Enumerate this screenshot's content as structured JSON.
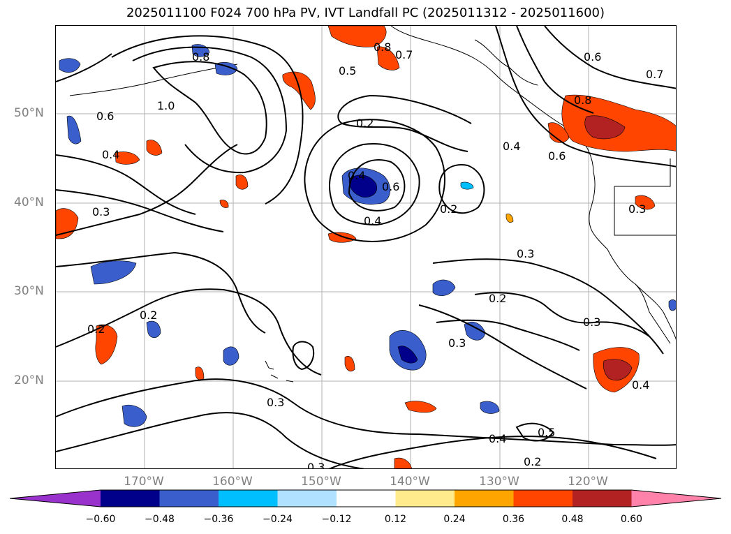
{
  "title": "2025011100 F024 700 hPa PV, IVT Landfall PC (2025011312 - 2025011600)",
  "lat_labels": [
    "50°N",
    "40°N",
    "30°N",
    "20°N"
  ],
  "lon_labels": [
    "170°W",
    "160°W",
    "150°W",
    "140°W",
    "130°W",
    "120°W"
  ],
  "colorbar": {
    "tick_labels": [
      "−0.60",
      "−0.48",
      "−0.36",
      "−0.24",
      "−0.12",
      "0.12",
      "0.24",
      "0.36",
      "0.48",
      "0.60"
    ],
    "colors": [
      "#9932cc",
      "#00008b",
      "#3a5fcd",
      "#00bfff",
      "#b0e2ff",
      "#ffffff",
      "#ffeb8c",
      "#ffa500",
      "#ff4500",
      "#b22222",
      "#ff82ab"
    ]
  },
  "contour_labels": [
    "0.8",
    "0.7",
    "0.5",
    "1.0",
    "0.6",
    "0.4",
    "0.8",
    "0.2",
    "0.6",
    "0.3",
    "0.4",
    "0.2",
    "0.4",
    "0.3",
    "0.2",
    "0.3",
    "0.3",
    "0.2",
    "0.2",
    "0.3",
    "0.3",
    "0.4",
    "0.5",
    "0.4",
    "0.2",
    "0.3",
    "0.6",
    "0.7",
    "0.8",
    "0.4",
    "0.6"
  ]
}
